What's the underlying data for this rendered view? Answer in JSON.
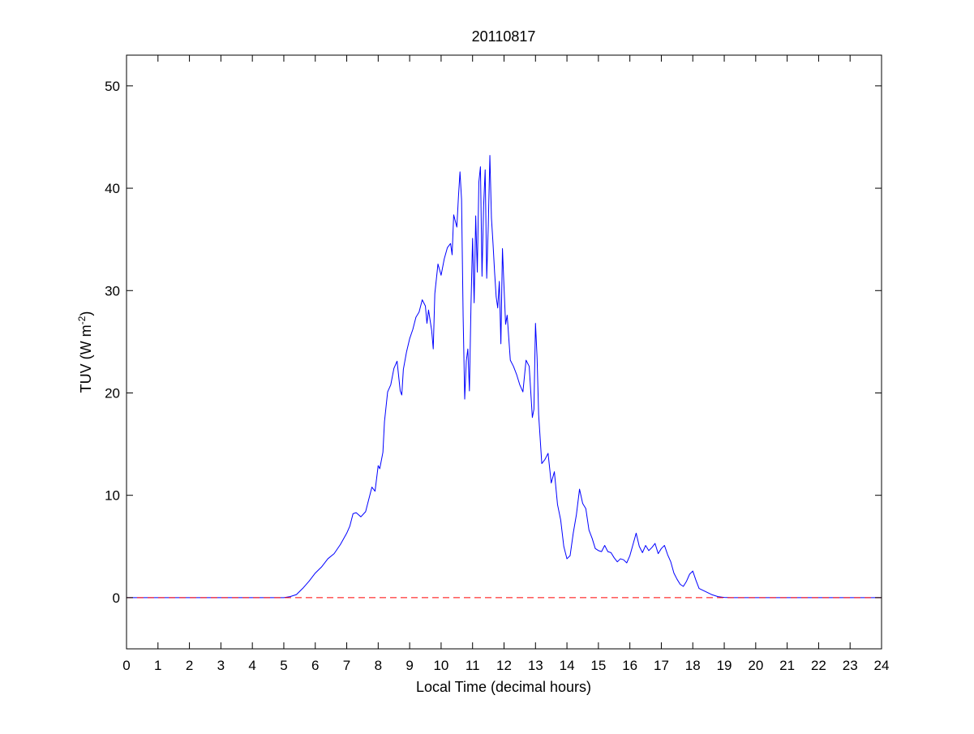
{
  "chart_data": {
    "type": "line",
    "title": "20110817",
    "xlabel": "Local Time (decimal hours)",
    "ylabel": {
      "text": "TUV (W m",
      "superscript": "-2",
      "suffix": ")"
    },
    "xlim": [
      0,
      24
    ],
    "ylim": [
      -5,
      53
    ],
    "xticks": [
      "0",
      "1",
      "2",
      "3",
      "4",
      "5",
      "6",
      "7",
      "8",
      "9",
      "10",
      "11",
      "12",
      "13",
      "14",
      "15",
      "16",
      "17",
      "18",
      "19",
      "20",
      "21",
      "22",
      "23",
      "24"
    ],
    "yticks": [
      "0",
      "10",
      "20",
      "30",
      "40",
      "50"
    ],
    "grid": false,
    "legend": "none",
    "series": [
      {
        "color": "#0000ff",
        "style": "solid",
        "x": [
          0,
          5.0,
          5.2,
          5.4,
          5.6,
          5.8,
          6.0,
          6.2,
          6.4,
          6.6,
          6.8,
          7.0,
          7.1,
          7.2,
          7.3,
          7.45,
          7.6,
          7.7,
          7.8,
          7.9,
          8.0,
          8.05,
          8.15,
          8.2,
          8.3,
          8.4,
          8.5,
          8.6,
          8.7,
          8.75,
          8.8,
          8.9,
          9.0,
          9.1,
          9.2,
          9.3,
          9.4,
          9.5,
          9.55,
          9.6,
          9.7,
          9.75,
          9.8,
          9.9,
          10.0,
          10.1,
          10.2,
          10.3,
          10.35,
          10.4,
          10.5,
          10.55,
          10.6,
          10.65,
          10.7,
          10.75,
          10.8,
          10.85,
          10.9,
          10.95,
          11.0,
          11.05,
          11.1,
          11.15,
          11.2,
          11.25,
          11.3,
          11.35,
          11.4,
          11.45,
          11.5,
          11.55,
          11.6,
          11.65,
          11.7,
          11.75,
          11.8,
          11.85,
          11.9,
          11.95,
          12.0,
          12.05,
          12.1,
          12.2,
          12.3,
          12.4,
          12.5,
          12.6,
          12.7,
          12.75,
          12.8,
          12.9,
          12.95,
          13.0,
          13.05,
          13.1,
          13.2,
          13.3,
          13.4,
          13.5,
          13.6,
          13.7,
          13.8,
          13.9,
          14.0,
          14.1,
          14.2,
          14.3,
          14.4,
          14.5,
          14.6,
          14.7,
          14.8,
          14.9,
          15.0,
          15.1,
          15.2,
          15.3,
          15.4,
          15.5,
          15.6,
          15.7,
          15.8,
          15.9,
          16.0,
          16.1,
          16.2,
          16.3,
          16.4,
          16.5,
          16.6,
          16.7,
          16.8,
          16.9,
          17.0,
          17.1,
          17.2,
          17.3,
          17.4,
          17.5,
          17.6,
          17.7,
          17.8,
          17.9,
          18.0,
          18.1,
          18.2,
          18.4,
          18.6,
          18.8,
          19.0,
          19.2,
          19.4,
          20.0,
          24.0
        ],
        "y": [
          0,
          0,
          0.1,
          0.3,
          0.9,
          1.6,
          2.4,
          3.0,
          3.8,
          4.3,
          5.2,
          6.3,
          7.0,
          8.2,
          8.3,
          7.9,
          8.4,
          9.6,
          10.8,
          10.4,
          12.9,
          12.6,
          14.2,
          17.2,
          20.1,
          20.8,
          22.4,
          23.1,
          20.2,
          19.8,
          22.3,
          24.0,
          25.3,
          26.2,
          27.4,
          27.9,
          29.1,
          28.5,
          26.8,
          28.1,
          26.1,
          24.3,
          29.7,
          32.6,
          31.5,
          33.1,
          34.2,
          34.6,
          33.5,
          37.4,
          36.2,
          39.1,
          41.6,
          38.9,
          27.5,
          19.4,
          23.1,
          24.3,
          20.2,
          28.6,
          35.1,
          28.8,
          37.3,
          31.8,
          40.6,
          42.1,
          31.4,
          38.2,
          41.8,
          31.2,
          36.4,
          43.2,
          37.1,
          34.6,
          31.8,
          29.4,
          28.3,
          30.9,
          24.8,
          34.1,
          30.3,
          26.7,
          27.6,
          23.2,
          22.6,
          21.8,
          20.8,
          20.1,
          23.2,
          22.9,
          22.6,
          17.6,
          18.4,
          26.8,
          23.5,
          17.9,
          13.1,
          13.5,
          14.1,
          11.2,
          12.3,
          9.1,
          7.6,
          5.0,
          3.8,
          4.1,
          6.3,
          8.1,
          10.6,
          9.2,
          8.7,
          6.6,
          5.8,
          4.8,
          4.6,
          4.5,
          5.1,
          4.5,
          4.4,
          3.9,
          3.5,
          3.8,
          3.7,
          3.4,
          4.1,
          5.2,
          6.3,
          5.0,
          4.4,
          5.1,
          4.6,
          4.9,
          5.3,
          4.3,
          4.8,
          5.1,
          4.2,
          3.5,
          2.4,
          1.8,
          1.3,
          1.1,
          1.6,
          2.3,
          2.6,
          1.7,
          0.9,
          0.6,
          0.3,
          0.1,
          0.02,
          0,
          0,
          0,
          0
        ]
      },
      {
        "color": "#ff0000",
        "style": "dashed",
        "x": [
          0,
          24
        ],
        "y": [
          0,
          0
        ]
      }
    ]
  }
}
